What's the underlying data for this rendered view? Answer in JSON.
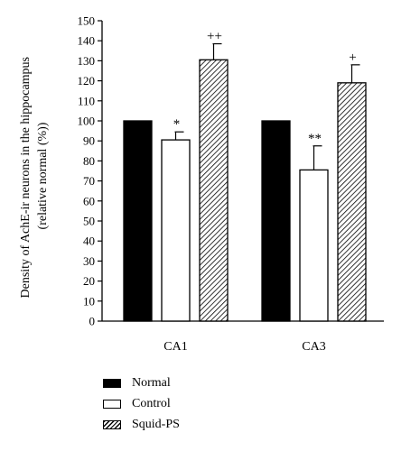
{
  "chart_data": {
    "type": "bar",
    "ylabel_line1": "Density of AchE-ir neurons in the hippocampus",
    "ylabel_line2": "(relative normal (%))",
    "xlabel": "",
    "ylim": [
      0,
      150
    ],
    "ytick_step": 10,
    "categories": [
      "CA1",
      "CA3"
    ],
    "series": [
      {
        "name": "Normal",
        "fill": "solid",
        "values": [
          100,
          100
        ],
        "errors": [
          0,
          0
        ],
        "annotations": [
          "",
          ""
        ]
      },
      {
        "name": "Control",
        "fill": "open",
        "values": [
          90.5,
          75.5
        ],
        "errors": [
          4,
          12
        ],
        "annotations": [
          "*",
          "**"
        ]
      },
      {
        "name": "Squid-PS",
        "fill": "hatch",
        "values": [
          130.5,
          119
        ],
        "errors": [
          8,
          9
        ],
        "annotations": [
          "++",
          "+"
        ]
      }
    ],
    "legend_position": "bottom-left",
    "grid": false
  }
}
